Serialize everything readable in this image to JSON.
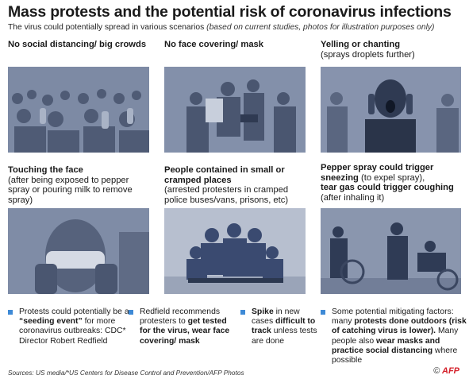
{
  "header": {
    "title": "Mass protests and the potential risk of coronavirus infections",
    "subtitle": "The virus could potentially spread in various scenarios",
    "subtitle_note": "(based on current studies, photos for illustration purposes only)"
  },
  "panels": [
    {
      "title_bold": "No social distancing/ big crowds",
      "sub": "",
      "photo_icon": "crowd-photo"
    },
    {
      "title_bold": "No face covering/ mask",
      "sub": "",
      "photo_icon": "arrest-photo"
    },
    {
      "title_bold": "Yelling or chanting",
      "sub": "(sprays droplets further)",
      "photo_icon": "yelling-photo"
    },
    {
      "title_bold": "Touching the face",
      "sub": "(after being exposed to pepper spray or pouring milk to remove spray)",
      "photo_icon": "face-wash-photo"
    },
    {
      "title_bold": "People contained in small or cramped places",
      "sub": "(arrested protesters in cramped police buses/vans, prisons, etc)",
      "photo_icon": "police-group-photo"
    },
    {
      "title_bold": "",
      "sub": "",
      "photo_icon": "pepper-spray-photo"
    }
  ],
  "panel6": {
    "b1": "Pepper spray could trigger sneezing",
    "t1": " (to expel spray),",
    "b2": "tear gas could trigger coughing",
    "t2": " (after inhaling it)"
  },
  "bullets": {
    "b1": {
      "a": "Protests could potentially be a ",
      "b": "“seeding event”",
      "c": " for more coronavirus outbreaks: CDC* Director Robert Redfield"
    },
    "b2": {
      "a": "Redfield recommends protesters to ",
      "b": "get tested for the virus, wear face covering/ mask",
      "c": ""
    },
    "b3": {
      "a": "",
      "b": "Spike",
      "c": " in new cases ",
      "d": "difficult to track",
      "e": " unless tests are done"
    },
    "b4": {
      "a": "Some potential mitigating factors: many ",
      "b": "protests done outdoors (risk of catching virus is lower).",
      "c": " Many people also ",
      "d": "wear masks and practice social distancing",
      "e": " where possible"
    }
  },
  "footer": {
    "sources": "Sources: US media/*US Centers for Disease Control and Prevention/AFP Photos",
    "copyright": "©",
    "brand": "AFP"
  },
  "colors": {
    "accent": "#3e8ad6",
    "photo_tint": "#6f7c96",
    "brand": "#d4202a"
  }
}
